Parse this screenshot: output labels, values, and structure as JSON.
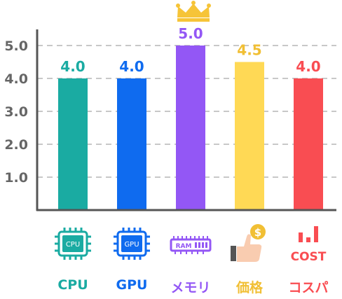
{
  "chart_data": {
    "type": "bar",
    "title": "",
    "xlabel": "",
    "ylabel": "",
    "ylim": [
      0,
      5
    ],
    "yticks": [
      "1.0",
      "2.0",
      "3.0",
      "4.0",
      "5.0"
    ],
    "grid": true,
    "categories": [
      "CPU",
      "GPU",
      "メモリ",
      "価格",
      "コスパ"
    ],
    "values": [
      4.0,
      4.0,
      5.0,
      4.5,
      4.0
    ],
    "value_labels": [
      "4.0",
      "4.0",
      "5.0",
      "4.5",
      "4.0"
    ],
    "colors": [
      "#1aaba2",
      "#0f6bef",
      "#9357f5",
      "#ffd955",
      "#f94d52"
    ],
    "label_colors": [
      "#1aaba2",
      "#0f6bef",
      "#9357f5",
      "#f1bf34",
      "#f94d52"
    ],
    "icons": [
      "cpu-chip-icon",
      "gpu-chip-icon",
      "ram-module-icon",
      "thumbs-up-coin-icon",
      "cost-bars-icon"
    ],
    "icon_texts": [
      "CPU",
      "GPU",
      "RAM",
      "$",
      "COST"
    ],
    "top_marker": "crown-icon"
  }
}
